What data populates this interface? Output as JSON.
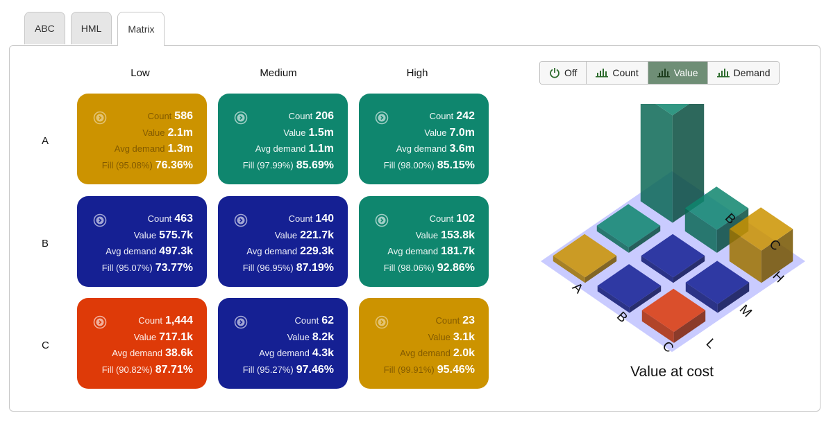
{
  "tabs": [
    {
      "label": "ABC",
      "active": false
    },
    {
      "label": "HML",
      "active": false
    },
    {
      "label": "Matrix",
      "active": true
    }
  ],
  "columns": [
    "Low",
    "Medium",
    "High"
  ],
  "rows": [
    "A",
    "B",
    "C"
  ],
  "colors": {
    "amber": "#cc9300",
    "teal": "#0f866e",
    "navy": "#152093",
    "red": "#de3a08"
  },
  "cells": [
    {
      "color": "amber",
      "count_label": "Count",
      "count": "586",
      "value_label": "Value",
      "value": "2.1m",
      "demand_label": "Avg demand",
      "demand": "1.3m",
      "fill_label": "Fill (95.08%)",
      "fill": "76.36%"
    },
    {
      "color": "teal",
      "count_label": "Count",
      "count": "206",
      "value_label": "Value",
      "value": "1.5m",
      "demand_label": "Avg demand",
      "demand": "1.1m",
      "fill_label": "Fill (97.99%)",
      "fill": "85.69%"
    },
    {
      "color": "teal",
      "count_label": "Count",
      "count": "242",
      "value_label": "Value",
      "value": "7.0m",
      "demand_label": "Avg demand",
      "demand": "3.6m",
      "fill_label": "Fill (98.00%)",
      "fill": "85.15%"
    },
    {
      "color": "navy",
      "count_label": "Count",
      "count": "463",
      "value_label": "Value",
      "value": "575.7k",
      "demand_label": "Avg demand",
      "demand": "497.3k",
      "fill_label": "Fill (95.07%)",
      "fill": "73.77%"
    },
    {
      "color": "navy",
      "count_label": "Count",
      "count": "140",
      "value_label": "Value",
      "value": "221.7k",
      "demand_label": "Avg demand",
      "demand": "229.3k",
      "fill_label": "Fill (96.95%)",
      "fill": "87.19%"
    },
    {
      "color": "teal",
      "count_label": "Count",
      "count": "102",
      "value_label": "Value",
      "value": "153.8k",
      "demand_label": "Avg demand",
      "demand": "181.7k",
      "fill_label": "Fill (98.06%)",
      "fill": "92.86%"
    },
    {
      "color": "red",
      "count_label": "Count",
      "count": "1,444",
      "value_label": "Value",
      "value": "717.1k",
      "demand_label": "Avg demand",
      "demand": "38.6k",
      "fill_label": "Fill (90.82%)",
      "fill": "87.71%"
    },
    {
      "color": "navy",
      "count_label": "Count",
      "count": "62",
      "value_label": "Value",
      "value": "8.2k",
      "demand_label": "Avg demand",
      "demand": "4.3k",
      "fill_label": "Fill (95.27%)",
      "fill": "97.46%"
    },
    {
      "color": "amber",
      "count_label": "Count",
      "count": "23",
      "value_label": "Value",
      "value": "3.1k",
      "demand_label": "Avg demand",
      "demand": "2.0k",
      "fill_label": "Fill (99.91%)",
      "fill": "95.46%"
    }
  ],
  "toolbar": [
    {
      "label": "Off",
      "icon": "power-icon",
      "active": false
    },
    {
      "label": "Count",
      "icon": "bar-chart-icon",
      "active": false
    },
    {
      "label": "Value",
      "icon": "bar-chart-icon",
      "active": true
    },
    {
      "label": "Demand",
      "icon": "bar-chart-icon",
      "active": false
    }
  ],
  "chart": {
    "title": "Value at cost",
    "row_labels": [
      "A",
      "B",
      "C"
    ],
    "col_labels": [
      "L",
      "M",
      "H"
    ],
    "metric": "Value",
    "bar_heights": [
      [
        2.1,
        1.5,
        7.0
      ],
      [
        0.5757,
        0.2217,
        0.1538
      ],
      [
        0.7171,
        0.0082,
        0.0031
      ]
    ],
    "bar_colors": [
      [
        "amber",
        "teal",
        "teal"
      ],
      [
        "navy",
        "navy",
        "teal"
      ],
      [
        "red",
        "navy",
        "amber"
      ]
    ]
  }
}
